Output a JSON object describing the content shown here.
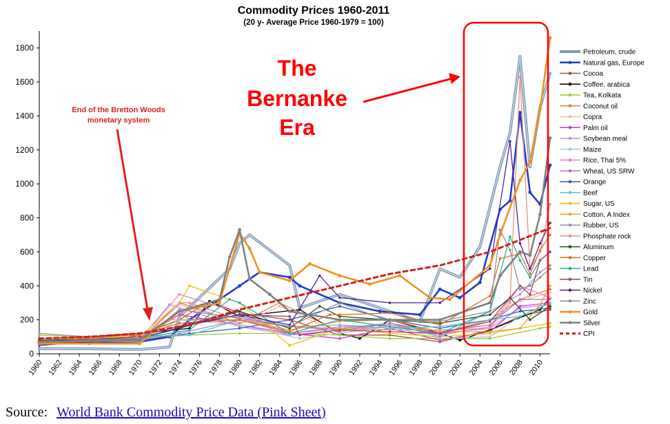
{
  "chart_data": {
    "type": "line",
    "title": "Commodity Prices 1960-2011",
    "subtitle": "(20 y- Average Price 1960-1979 = 100)",
    "xlabel": "",
    "ylabel": "",
    "xlim": [
      1960,
      2011
    ],
    "ylim": [
      0,
      1900
    ],
    "y_ticks": [
      0,
      200,
      400,
      600,
      800,
      1000,
      1200,
      1400,
      1600,
      1800
    ],
    "x_ticks": [
      "1960",
      "1962",
      "1964",
      "1966",
      "1968",
      "1970",
      "1972",
      "1974",
      "1976",
      "1978",
      "1980",
      "1982",
      "1984",
      "1986",
      "1988",
      "1990",
      "1992",
      "1994",
      "1996",
      "1998",
      "2000",
      "2002",
      "2004",
      "2006",
      "2008",
      "2010"
    ],
    "grid": false,
    "legend_position": "right",
    "series": [
      {
        "name": "Petroleum, crude",
        "color": "#7f99b2",
        "x": [
          1960,
          1965,
          1970,
          1973,
          1974,
          1979,
          1980,
          1981,
          1985,
          1986,
          1990,
          1994,
          1998,
          2000,
          2002,
          2004,
          2006,
          2007,
          2008,
          2009,
          2010,
          2011
        ],
        "values": [
          30,
          30,
          25,
          40,
          220,
          500,
          650,
          700,
          520,
          270,
          350,
          270,
          190,
          500,
          450,
          630,
          1100,
          1300,
          1750,
          1100,
          1450,
          1650
        ]
      },
      {
        "name": "Natural gas, Europe",
        "color": "#1f3fbf",
        "x": [
          1960,
          1970,
          1973,
          1975,
          1980,
          1982,
          1985,
          1986,
          1990,
          1994,
          1998,
          2000,
          2002,
          2004,
          2006,
          2007,
          2008,
          2009,
          2010,
          2011
        ],
        "values": [
          70,
          70,
          100,
          200,
          400,
          480,
          450,
          400,
          300,
          250,
          230,
          380,
          330,
          420,
          850,
          900,
          1420,
          950,
          880,
          1110
        ]
      },
      {
        "name": "Cocoa",
        "color": "#a0522d",
        "x": [
          1960,
          1965,
          1970,
          1974,
          1977,
          1980,
          1985,
          1990,
          1995,
          2000,
          2005,
          2008,
          2011
        ],
        "values": [
          80,
          60,
          110,
          200,
          310,
          240,
          200,
          110,
          110,
          70,
          140,
          220,
          260
        ]
      },
      {
        "name": "Coffee, arabica",
        "color": "#000000",
        "x": [
          1960,
          1965,
          1970,
          1975,
          1977,
          1980,
          1986,
          1990,
          1992,
          1995,
          2000,
          2002,
          2005,
          2010,
          2011
        ],
        "values": [
          90,
          100,
          120,
          150,
          310,
          220,
          260,
          120,
          90,
          200,
          120,
          80,
          140,
          260,
          330
        ]
      },
      {
        "name": "Tea, Kolkata",
        "color": "#9acd32",
        "x": [
          1960,
          1970,
          1975,
          1980,
          1985,
          1990,
          1995,
          2000,
          2005,
          2010,
          2011
        ],
        "values": [
          110,
          90,
          110,
          120,
          120,
          110,
          90,
          90,
          90,
          150,
          160
        ]
      },
      {
        "name": "Coconut oil",
        "color": "#e08040",
        "x": [
          1960,
          1970,
          1974,
          1980,
          1984,
          1990,
          1995,
          2000,
          2005,
          2008,
          2011
        ],
        "values": [
          90,
          80,
          300,
          180,
          300,
          130,
          180,
          120,
          200,
          320,
          380
        ]
      },
      {
        "name": "Copra",
        "color": "#f4b8b8",
        "x": [
          1960,
          1970,
          1974,
          1980,
          1984,
          1990,
          1995,
          2000,
          2005,
          2008,
          2011
        ],
        "values": [
          90,
          80,
          290,
          170,
          280,
          120,
          170,
          110,
          190,
          310,
          360
        ]
      },
      {
        "name": "Palm oil",
        "color": "#e030d0",
        "x": [
          1960,
          1970,
          1974,
          1980,
          1985,
          1990,
          1995,
          2000,
          2005,
          2008,
          2011
        ],
        "values": [
          80,
          90,
          230,
          170,
          120,
          90,
          150,
          80,
          130,
          280,
          300
        ]
      },
      {
        "name": "Soybean meal",
        "color": "#c090e0",
        "x": [
          1960,
          1970,
          1973,
          1980,
          1985,
          1990,
          1995,
          2000,
          2005,
          2008,
          2011
        ],
        "values": [
          70,
          80,
          290,
          160,
          110,
          140,
          160,
          120,
          150,
          270,
          290
        ]
      },
      {
        "name": "Maize",
        "color": "#a8c8e0",
        "x": [
          1960,
          1970,
          1974,
          1980,
          1986,
          1990,
          1995,
          2000,
          2005,
          2008,
          2011
        ],
        "values": [
          80,
          80,
          200,
          170,
          90,
          120,
          160,
          90,
          100,
          220,
          300
        ]
      },
      {
        "name": "Rice, Thai 5%",
        "color": "#f080c0",
        "x": [
          1960,
          1970,
          1974,
          1980,
          1985,
          1990,
          1995,
          2000,
          2005,
          2008,
          2011
        ],
        "values": [
          80,
          80,
          350,
          240,
          120,
          160,
          170,
          110,
          160,
          400,
          330
        ]
      },
      {
        "name": "Wheat, US SRW",
        "color": "#b070d0",
        "x": [
          1960,
          1970,
          1974,
          1980,
          1985,
          1990,
          1995,
          2000,
          2005,
          2008,
          2011
        ],
        "values": [
          80,
          70,
          260,
          210,
          160,
          140,
          180,
          130,
          170,
          320,
          320
        ]
      },
      {
        "name": "Orange",
        "color": "#3060b0",
        "x": [
          1960,
          1970,
          1975,
          1980,
          1985,
          1990,
          1995,
          2000,
          2005,
          2008,
          2011
        ],
        "values": [
          70,
          80,
          120,
          150,
          200,
          280,
          200,
          150,
          200,
          250,
          270
        ]
      },
      {
        "name": "Beef",
        "color": "#60c0d0",
        "x": [
          1960,
          1970,
          1975,
          1980,
          1985,
          1990,
          1995,
          2000,
          2005,
          2008,
          2011
        ],
        "values": [
          60,
          100,
          110,
          200,
          160,
          170,
          150,
          160,
          200,
          220,
          300
        ]
      },
      {
        "name": "Sugar, US",
        "color": "#f0c000",
        "x": [
          1960,
          1970,
          1974,
          1975,
          1980,
          1985,
          1990,
          1995,
          2000,
          2005,
          2008,
          2011
        ],
        "values": [
          90,
          100,
          300,
          400,
          300,
          50,
          150,
          120,
          100,
          120,
          150,
          180
        ]
      },
      {
        "name": "Cotton, A Index",
        "color": "#f0a030",
        "x": [
          1960,
          1970,
          1973,
          1980,
          1985,
          1990,
          1995,
          2000,
          2005,
          2008,
          2010,
          2011
        ],
        "values": [
          90,
          90,
          200,
          200,
          140,
          190,
          200,
          130,
          130,
          150,
          290,
          400
        ]
      },
      {
        "name": "Rubber, US",
        "color": "#a090c0",
        "x": [
          1960,
          1970,
          1974,
          1980,
          1985,
          1990,
          1995,
          2000,
          2005,
          2008,
          2010,
          2011
        ],
        "values": [
          120,
          80,
          120,
          200,
          120,
          150,
          180,
          100,
          250,
          350,
          480,
          520
        ]
      },
      {
        "name": "Phosphate rock",
        "color": "#e89080",
        "x": [
          1960,
          1970,
          1974,
          1975,
          1980,
          1985,
          1990,
          1995,
          2000,
          2005,
          2007,
          2008,
          2009,
          2010,
          2011
        ],
        "values": [
          80,
          70,
          300,
          300,
          200,
          160,
          150,
          140,
          140,
          150,
          300,
          1630,
          500,
          600,
          880
        ]
      },
      {
        "name": "Aluminum",
        "color": "#205020",
        "x": [
          1960,
          1970,
          1974,
          1980,
          1985,
          1988,
          1990,
          1995,
          2000,
          2005,
          2007,
          2009,
          2011
        ],
        "values": [
          80,
          90,
          150,
          250,
          150,
          280,
          220,
          200,
          180,
          230,
          330,
          200,
          280
        ]
      },
      {
        "name": "Copper",
        "color": "#e07020",
        "x": [
          1960,
          1966,
          1970,
          1974,
          1980,
          1985,
          1989,
          1990,
          1995,
          2000,
          2005,
          2006,
          2008,
          2009,
          2010,
          2011
        ],
        "values": [
          60,
          100,
          110,
          180,
          200,
          130,
          230,
          230,
          240,
          170,
          340,
          560,
          590,
          470,
          610,
          700
        ]
      },
      {
        "name": "Lead",
        "color": "#20b0a0",
        "x": [
          1960,
          1970,
          1975,
          1979,
          1980,
          1985,
          1990,
          1995,
          2000,
          2005,
          2007,
          2008,
          2009,
          2010,
          2011
        ],
        "values": [
          70,
          90,
          140,
          320,
          300,
          120,
          200,
          160,
          120,
          250,
          690,
          550,
          450,
          550,
          600
        ]
      },
      {
        "name": "Tin",
        "color": "#a04070",
        "x": [
          1960,
          1970,
          1975,
          1980,
          1985,
          1986,
          1990,
          1995,
          2000,
          2005,
          2008,
          2009,
          2010,
          2011
        ],
        "values": [
          70,
          100,
          180,
          230,
          220,
          110,
          140,
          130,
          120,
          190,
          400,
          350,
          550,
          600
        ]
      },
      {
        "name": "Nickel",
        "color": "#502090",
        "x": [
          1960,
          1970,
          1975,
          1980,
          1985,
          1988,
          1990,
          1995,
          2000,
          2005,
          2007,
          2008,
          2009,
          2010,
          2011
        ],
        "values": [
          50,
          90,
          170,
          230,
          170,
          460,
          330,
          300,
          300,
          500,
          1250,
          650,
          500,
          650,
          770
        ]
      },
      {
        "name": "Zinc",
        "color": "#909090",
        "x": [
          1960,
          1970,
          1974,
          1975,
          1980,
          1985,
          1990,
          1995,
          2000,
          2005,
          2006,
          2007,
          2008,
          2009,
          2010,
          2011
        ],
        "values": [
          70,
          90,
          250,
          200,
          220,
          160,
          300,
          190,
          190,
          250,
          730,
          610,
          380,
          400,
          450,
          500
        ]
      },
      {
        "name": "Gold",
        "color": "#f09020",
        "x": [
          1960,
          1970,
          1974,
          1978,
          1980,
          1981,
          1982,
          1985,
          1987,
          1990,
          1993,
          1996,
          1999,
          2001,
          2005,
          2006,
          2008,
          2009,
          2010,
          2011
        ],
        "values": [
          60,
          60,
          250,
          300,
          710,
          620,
          480,
          430,
          530,
          460,
          410,
          460,
          330,
          320,
          520,
          700,
          1020,
          1130,
          1440,
          1860
        ]
      },
      {
        "name": "Silver",
        "color": "#808080",
        "x": [
          1960,
          1970,
          1974,
          1978,
          1979,
          1980,
          1981,
          1983,
          1985,
          1990,
          1995,
          2000,
          2005,
          2006,
          2008,
          2009,
          2010,
          2011
        ],
        "values": [
          70,
          80,
          250,
          320,
          570,
          730,
          440,
          350,
          250,
          200,
          200,
          200,
          300,
          460,
          600,
          580,
          820,
          1270
        ]
      },
      {
        "name": "CPI",
        "color": "#d02020",
        "x": [
          1960,
          1965,
          1970,
          1975,
          1980,
          1985,
          1990,
          1995,
          2000,
          2005,
          2011
        ],
        "values": [
          90,
          100,
          120,
          170,
          260,
          330,
          400,
          470,
          520,
          600,
          740
        ]
      }
    ],
    "annotations": [
      {
        "text": "The Bernanke Era",
        "lines": [
          "The",
          "Bernanke",
          "Era"
        ],
        "color": "#ff0000"
      },
      {
        "text": "End of the Bretton Woods monetary system",
        "lines": [
          "End of the Bretton Woods",
          "monetary system"
        ],
        "color": "#e02020"
      }
    ]
  },
  "source": {
    "label": "Source:",
    "link_text": "World Bank Commodity Price Data (Pink Sheet)"
  }
}
